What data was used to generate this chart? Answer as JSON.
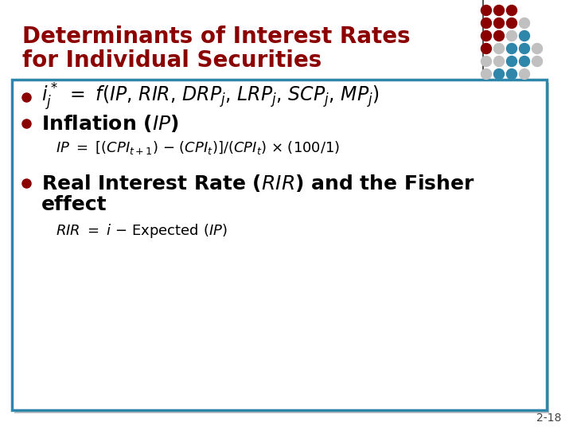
{
  "bg_color": "#ffffff",
  "title_line1": "Determinants of Interest Rates",
  "title_line2": "for Individual Securities",
  "title_color": "#8B0000",
  "title_fontsize": 20,
  "box_border_color": "#2E86AB",
  "box_fill_color": "#ffffff",
  "bullet_color": "#8B0000",
  "bullet1_fontsize": 17,
  "bullet2_fontsize": 18,
  "sub_fontsize": 13,
  "bullet3_fontsize": 18,
  "page_num": "2-18",
  "dot_grid": [
    [
      "#8B0000",
      "#8B0000",
      "#8B0000",
      "none",
      "none"
    ],
    [
      "#8B0000",
      "#8B0000",
      "#8B0000",
      "#c0c0c0",
      "none"
    ],
    [
      "#8B0000",
      "#8B0000",
      "#c0c0c0",
      "#2E86AB",
      "none"
    ],
    [
      "#8B0000",
      "#c0c0c0",
      "#2E86AB",
      "#2E86AB",
      "#c0c0c0"
    ],
    [
      "#c0c0c0",
      "#c0c0c0",
      "#2E86AB",
      "#2E86AB",
      "#c0c0c0"
    ],
    [
      "#c0c0c0",
      "#2E86AB",
      "#2E86AB",
      "#c0c0c0",
      "none"
    ]
  ]
}
